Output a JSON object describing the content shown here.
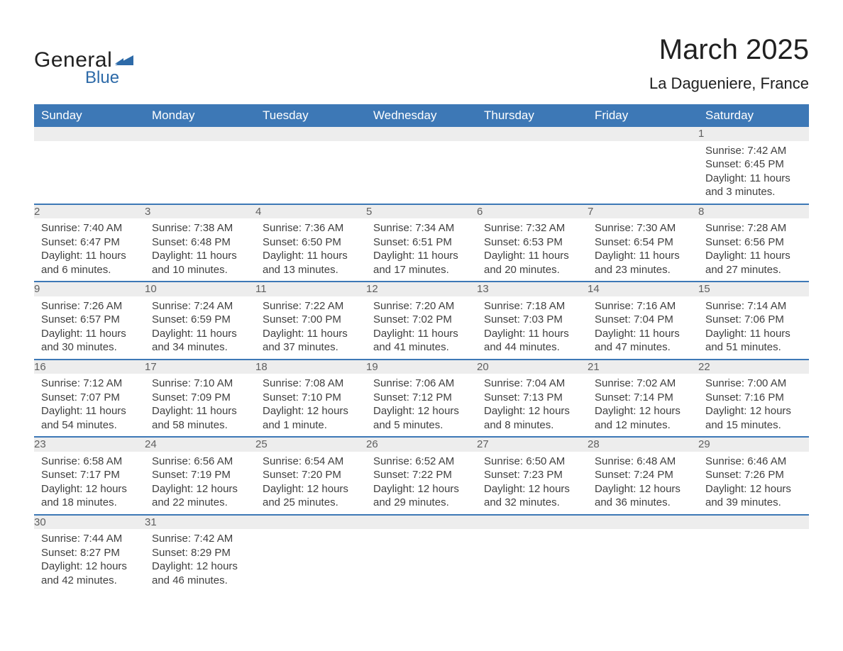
{
  "logo": {
    "general": "General",
    "blue": "Blue",
    "shape_color": "#2d6aa8"
  },
  "title": "March 2025",
  "location": "La Dagueniere, France",
  "header_bg": "#3d78b6",
  "header_fg": "#ffffff",
  "daynum_bg": "#ededed",
  "border_color": "#3d78b6",
  "text_color": "#404040",
  "daynames": [
    "Sunday",
    "Monday",
    "Tuesday",
    "Wednesday",
    "Thursday",
    "Friday",
    "Saturday"
  ],
  "weeks": [
    [
      null,
      null,
      null,
      null,
      null,
      null,
      {
        "n": "1",
        "sr": "Sunrise: 7:42 AM",
        "ss": "Sunset: 6:45 PM",
        "dl": "Daylight: 11 hours and 3 minutes."
      }
    ],
    [
      {
        "n": "2",
        "sr": "Sunrise: 7:40 AM",
        "ss": "Sunset: 6:47 PM",
        "dl": "Daylight: 11 hours and 6 minutes."
      },
      {
        "n": "3",
        "sr": "Sunrise: 7:38 AM",
        "ss": "Sunset: 6:48 PM",
        "dl": "Daylight: 11 hours and 10 minutes."
      },
      {
        "n": "4",
        "sr": "Sunrise: 7:36 AM",
        "ss": "Sunset: 6:50 PM",
        "dl": "Daylight: 11 hours and 13 minutes."
      },
      {
        "n": "5",
        "sr": "Sunrise: 7:34 AM",
        "ss": "Sunset: 6:51 PM",
        "dl": "Daylight: 11 hours and 17 minutes."
      },
      {
        "n": "6",
        "sr": "Sunrise: 7:32 AM",
        "ss": "Sunset: 6:53 PM",
        "dl": "Daylight: 11 hours and 20 minutes."
      },
      {
        "n": "7",
        "sr": "Sunrise: 7:30 AM",
        "ss": "Sunset: 6:54 PM",
        "dl": "Daylight: 11 hours and 23 minutes."
      },
      {
        "n": "8",
        "sr": "Sunrise: 7:28 AM",
        "ss": "Sunset: 6:56 PM",
        "dl": "Daylight: 11 hours and 27 minutes."
      }
    ],
    [
      {
        "n": "9",
        "sr": "Sunrise: 7:26 AM",
        "ss": "Sunset: 6:57 PM",
        "dl": "Daylight: 11 hours and 30 minutes."
      },
      {
        "n": "10",
        "sr": "Sunrise: 7:24 AM",
        "ss": "Sunset: 6:59 PM",
        "dl": "Daylight: 11 hours and 34 minutes."
      },
      {
        "n": "11",
        "sr": "Sunrise: 7:22 AM",
        "ss": "Sunset: 7:00 PM",
        "dl": "Daylight: 11 hours and 37 minutes."
      },
      {
        "n": "12",
        "sr": "Sunrise: 7:20 AM",
        "ss": "Sunset: 7:02 PM",
        "dl": "Daylight: 11 hours and 41 minutes."
      },
      {
        "n": "13",
        "sr": "Sunrise: 7:18 AM",
        "ss": "Sunset: 7:03 PM",
        "dl": "Daylight: 11 hours and 44 minutes."
      },
      {
        "n": "14",
        "sr": "Sunrise: 7:16 AM",
        "ss": "Sunset: 7:04 PM",
        "dl": "Daylight: 11 hours and 47 minutes."
      },
      {
        "n": "15",
        "sr": "Sunrise: 7:14 AM",
        "ss": "Sunset: 7:06 PM",
        "dl": "Daylight: 11 hours and 51 minutes."
      }
    ],
    [
      {
        "n": "16",
        "sr": "Sunrise: 7:12 AM",
        "ss": "Sunset: 7:07 PM",
        "dl": "Daylight: 11 hours and 54 minutes."
      },
      {
        "n": "17",
        "sr": "Sunrise: 7:10 AM",
        "ss": "Sunset: 7:09 PM",
        "dl": "Daylight: 11 hours and 58 minutes."
      },
      {
        "n": "18",
        "sr": "Sunrise: 7:08 AM",
        "ss": "Sunset: 7:10 PM",
        "dl": "Daylight: 12 hours and 1 minute."
      },
      {
        "n": "19",
        "sr": "Sunrise: 7:06 AM",
        "ss": "Sunset: 7:12 PM",
        "dl": "Daylight: 12 hours and 5 minutes."
      },
      {
        "n": "20",
        "sr": "Sunrise: 7:04 AM",
        "ss": "Sunset: 7:13 PM",
        "dl": "Daylight: 12 hours and 8 minutes."
      },
      {
        "n": "21",
        "sr": "Sunrise: 7:02 AM",
        "ss": "Sunset: 7:14 PM",
        "dl": "Daylight: 12 hours and 12 minutes."
      },
      {
        "n": "22",
        "sr": "Sunrise: 7:00 AM",
        "ss": "Sunset: 7:16 PM",
        "dl": "Daylight: 12 hours and 15 minutes."
      }
    ],
    [
      {
        "n": "23",
        "sr": "Sunrise: 6:58 AM",
        "ss": "Sunset: 7:17 PM",
        "dl": "Daylight: 12 hours and 18 minutes."
      },
      {
        "n": "24",
        "sr": "Sunrise: 6:56 AM",
        "ss": "Sunset: 7:19 PM",
        "dl": "Daylight: 12 hours and 22 minutes."
      },
      {
        "n": "25",
        "sr": "Sunrise: 6:54 AM",
        "ss": "Sunset: 7:20 PM",
        "dl": "Daylight: 12 hours and 25 minutes."
      },
      {
        "n": "26",
        "sr": "Sunrise: 6:52 AM",
        "ss": "Sunset: 7:22 PM",
        "dl": "Daylight: 12 hours and 29 minutes."
      },
      {
        "n": "27",
        "sr": "Sunrise: 6:50 AM",
        "ss": "Sunset: 7:23 PM",
        "dl": "Daylight: 12 hours and 32 minutes."
      },
      {
        "n": "28",
        "sr": "Sunrise: 6:48 AM",
        "ss": "Sunset: 7:24 PM",
        "dl": "Daylight: 12 hours and 36 minutes."
      },
      {
        "n": "29",
        "sr": "Sunrise: 6:46 AM",
        "ss": "Sunset: 7:26 PM",
        "dl": "Daylight: 12 hours and 39 minutes."
      }
    ],
    [
      {
        "n": "30",
        "sr": "Sunrise: 7:44 AM",
        "ss": "Sunset: 8:27 PM",
        "dl": "Daylight: 12 hours and 42 minutes."
      },
      {
        "n": "31",
        "sr": "Sunrise: 7:42 AM",
        "ss": "Sunset: 8:29 PM",
        "dl": "Daylight: 12 hours and 46 minutes."
      },
      null,
      null,
      null,
      null,
      null
    ]
  ]
}
